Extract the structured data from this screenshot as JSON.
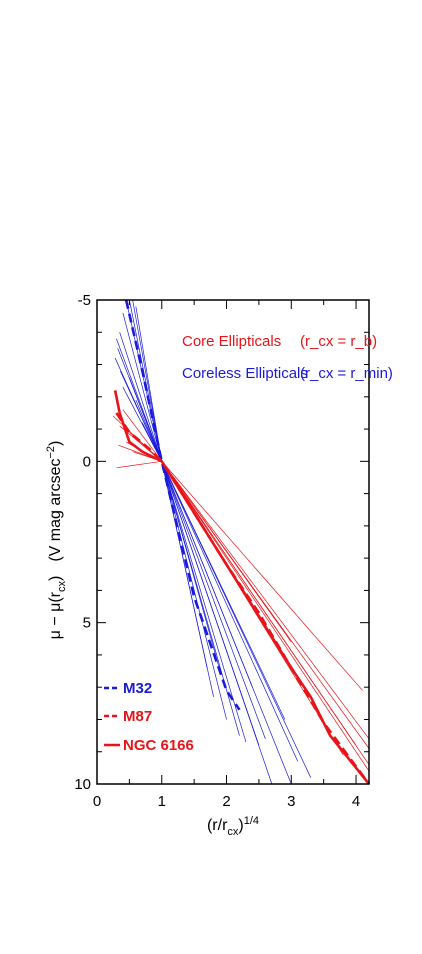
{
  "chart_data": {
    "type": "line",
    "xlabel": "(r/r_cx)^1/4",
    "ylabel": "μ − μ(r_cx) (V mag arcsec−2)",
    "xlim": [
      0,
      4.2
    ],
    "ylim": [
      10,
      -5
    ],
    "x_ticks": [
      "0",
      "1",
      "2",
      "3",
      "4"
    ],
    "y_ticks": [
      "-5",
      "0",
      "5",
      "10"
    ],
    "legend_top": [
      {
        "name": "Core Ellipticals",
        "def": "(r_cx = r_b)",
        "color": "#e8141a"
      },
      {
        "name": "Coreless Ellipticals",
        "def": "(r_cx = r_min)",
        "color": "#1a1adb"
      }
    ],
    "legend_bottom": [
      {
        "label": "M32",
        "color": "#1a1adb",
        "style": "dashed"
      },
      {
        "label": "M87",
        "color": "#e8141a",
        "style": "dashed"
      },
      {
        "label": "NGC 6166",
        "color": "#e8141a",
        "style": "solid"
      }
    ],
    "series": [
      {
        "group": "coreless",
        "x": [
          0.45,
          1.0,
          2.3
        ],
        "y": [
          -5.0,
          0,
          8.7
        ]
      },
      {
        "group": "coreless",
        "x": [
          0.5,
          1.0,
          2.5
        ],
        "y": [
          -5.0,
          0,
          8.8
        ]
      },
      {
        "group": "coreless",
        "x": [
          0.55,
          1.0,
          3.0
        ],
        "y": [
          -5.0,
          0,
          10.0
        ]
      },
      {
        "group": "coreless",
        "x": [
          0.6,
          1.0,
          2.7
        ],
        "y": [
          -4.8,
          0,
          10.0
        ]
      },
      {
        "group": "coreless",
        "x": [
          0.4,
          1.0,
          2.2
        ],
        "y": [
          -4.6,
          0,
          8.5
        ]
      },
      {
        "group": "coreless",
        "x": [
          0.35,
          1.0,
          2.0
        ],
        "y": [
          -4.0,
          0,
          8.0
        ]
      },
      {
        "group": "coreless",
        "x": [
          0.3,
          1.0,
          1.8
        ],
        "y": [
          -3.8,
          0,
          7.3
        ]
      },
      {
        "group": "coreless",
        "x": [
          0.32,
          1.0,
          1.7
        ],
        "y": [
          -3.5,
          0,
          6.4
        ]
      },
      {
        "group": "coreless",
        "x": [
          0.28,
          1.0,
          1.9
        ],
        "y": [
          -3.2,
          0,
          6.5
        ]
      },
      {
        "group": "coreless",
        "x": [
          0.36,
          1.0,
          2.4
        ],
        "y": [
          -2.8,
          0,
          7.0
        ]
      },
      {
        "group": "coreless",
        "x": [
          0.4,
          1.0,
          2.6
        ],
        "y": [
          -2.3,
          0,
          8.6
        ]
      },
      {
        "group": "coreless",
        "x": [
          0.5,
          1.0,
          3.1
        ],
        "y": [
          -2.6,
          0,
          9.3
        ]
      },
      {
        "group": "coreless",
        "x": [
          0.6,
          1.0,
          3.3
        ],
        "y": [
          -1.9,
          0,
          9.8
        ]
      },
      {
        "group": "coreless",
        "x": [
          0.7,
          1.0,
          2.9
        ],
        "y": [
          -1.2,
          0,
          8.0
        ]
      },
      {
        "group": "core",
        "x": [
          0.33,
          1.0,
          4.2
        ],
        "y": [
          -0.5,
          0,
          8.6
        ]
      },
      {
        "group": "core",
        "x": [
          0.3,
          1.0,
          4.2
        ],
        "y": [
          0.2,
          0,
          8.9
        ]
      },
      {
        "group": "core",
        "x": [
          0.35,
          1.0,
          4.0
        ],
        "y": [
          -1.1,
          0,
          8.8
        ]
      },
      {
        "group": "core",
        "x": [
          0.25,
          1.0,
          4.2
        ],
        "y": [
          -1.4,
          0,
          9.6
        ]
      },
      {
        "group": "core",
        "x": [
          0.4,
          1.0,
          3.0
        ],
        "y": [
          -1.6,
          0,
          5.6
        ]
      },
      {
        "group": "core",
        "x": [
          0.45,
          1.0,
          4.1
        ],
        "y": [
          -0.6,
          0,
          7.1
        ]
      },
      {
        "group": "core",
        "x": [
          0.5,
          1.0,
          3.8
        ],
        "y": [
          -0.9,
          0,
          9.1
        ]
      },
      {
        "group": "core",
        "x": [
          0.55,
          1.0,
          4.2
        ],
        "y": [
          -0.3,
          0,
          9.4
        ]
      },
      {
        "name": "M32",
        "group": "coreless",
        "style": "dashed",
        "x": [
          0.45,
          0.7,
          1.0,
          1.5,
          2.0,
          2.2
        ],
        "y": [
          -5.0,
          -2.8,
          0,
          4.2,
          7.1,
          7.7
        ]
      },
      {
        "name": "M87",
        "group": "core",
        "style": "dashed",
        "x": [
          0.3,
          0.5,
          0.8,
          1.0,
          1.5,
          2.0,
          2.5,
          3.0,
          3.5,
          4.2
        ],
        "y": [
          -1.5,
          -0.9,
          -0.4,
          0,
          1.6,
          3.2,
          4.7,
          6.4,
          8.1,
          10.0
        ]
      },
      {
        "name": "NGC 6166",
        "group": "core",
        "style": "thick",
        "x": [
          0.28,
          0.35,
          0.5,
          0.7,
          1.0,
          1.5,
          2.0,
          2.5,
          3.0,
          3.3,
          3.6,
          4.0,
          4.2
        ],
        "y": [
          -2.2,
          -1.5,
          -0.6,
          -0.3,
          0,
          1.6,
          3.2,
          4.8,
          6.4,
          7.3,
          8.5,
          9.5,
          10.0
        ]
      }
    ]
  },
  "colors": {
    "core": "#e8141a",
    "coreless": "#1a1adb"
  }
}
